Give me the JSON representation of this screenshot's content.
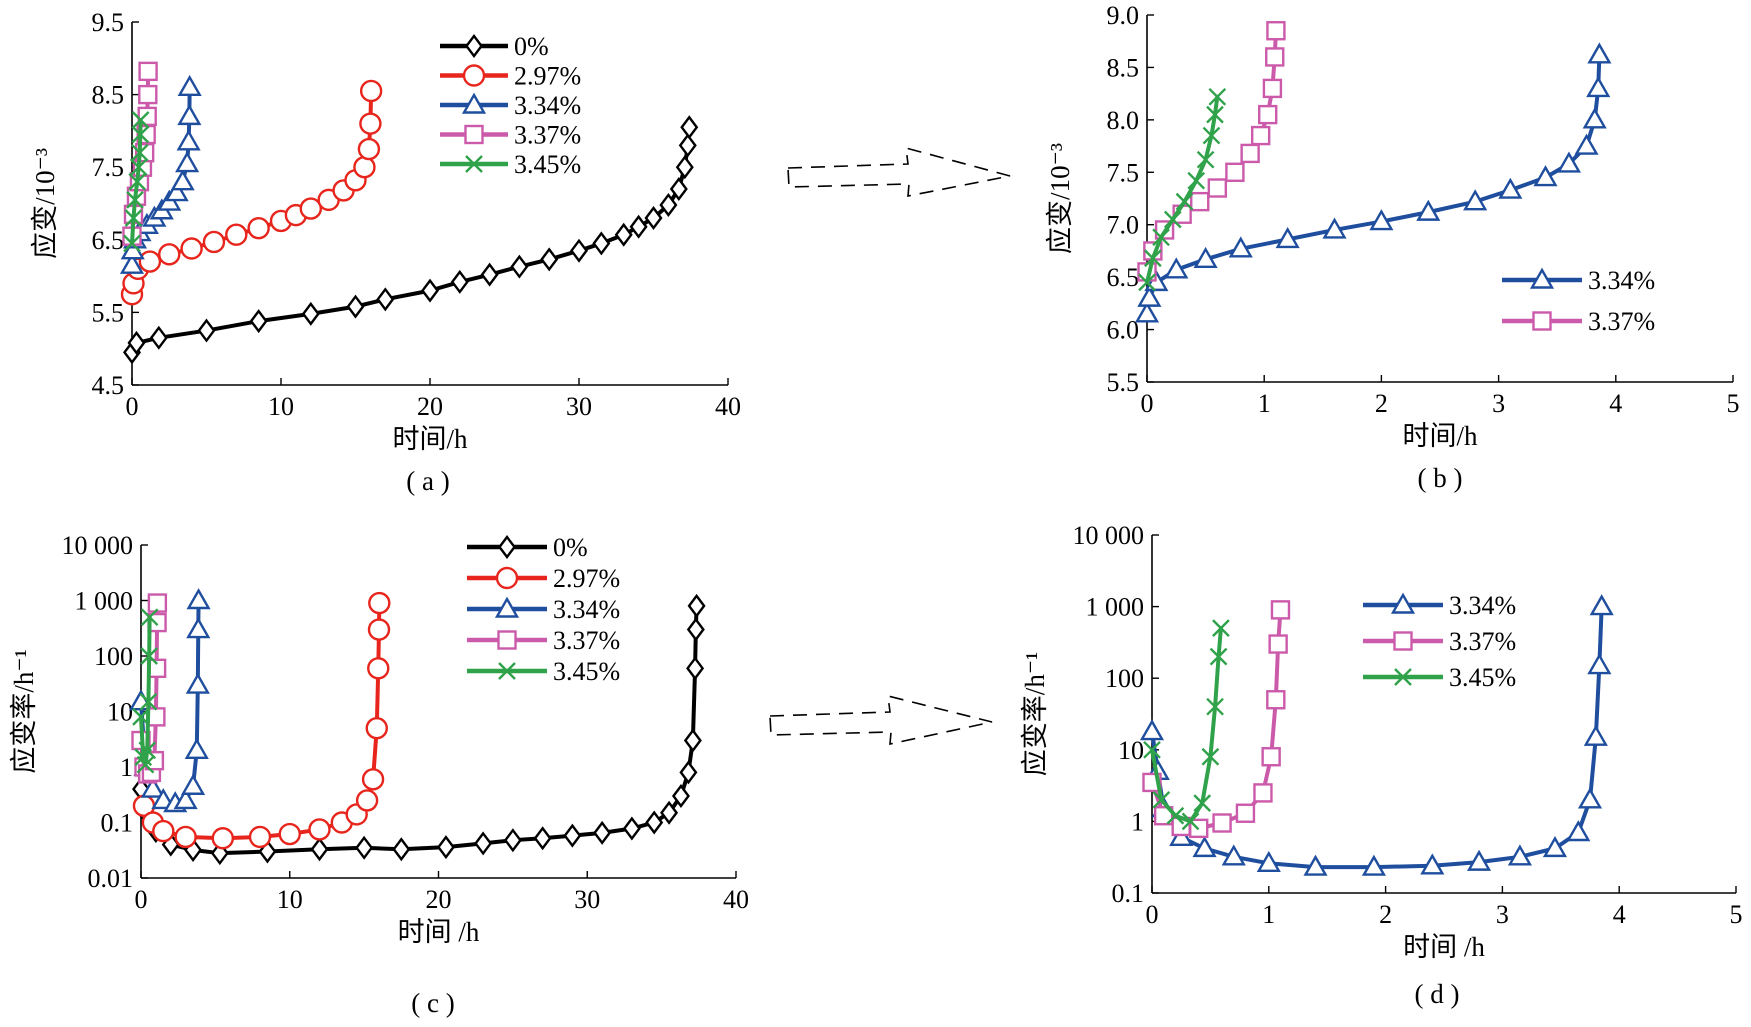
{
  "arrows": [
    {
      "name": "arrow-ab"
    },
    {
      "name": "arrow-cd"
    }
  ],
  "chart_data": [
    {
      "id": "a",
      "type": "line",
      "panel_label": "( a )",
      "xlabel": "时间/h",
      "ylabel": "应变/10⁻³",
      "xlim": [
        0,
        40
      ],
      "ylim": [
        4.5,
        9.5
      ],
      "yscale": "linear",
      "xticks": [
        {
          "v": 0,
          "label": "0"
        },
        {
          "v": 10,
          "label": "10"
        },
        {
          "v": 20,
          "label": "20"
        },
        {
          "v": 30,
          "label": "30"
        },
        {
          "v": 40,
          "label": "40"
        }
      ],
      "yticks": [
        {
          "v": 4.5,
          "label": "4.5"
        },
        {
          "v": 5.5,
          "label": "5.5"
        },
        {
          "v": 6.5,
          "label": "6.5"
        },
        {
          "v": 7.5,
          "label": "7.5"
        },
        {
          "v": 8.5,
          "label": "8.5"
        },
        {
          "v": 9.5,
          "label": "9.5"
        }
      ],
      "legend": {
        "position": "top-center"
      },
      "series": [
        {
          "name": "0%",
          "color": "#000000",
          "marker": "diamond",
          "x": [
            0,
            0.3,
            1.8,
            5,
            8.5,
            12,
            15,
            17,
            20,
            22,
            24,
            26,
            28,
            30,
            31.5,
            33,
            34,
            35,
            36,
            36.7,
            37.1,
            37.3,
            37.4
          ],
          "y": [
            4.95,
            5.08,
            5.15,
            5.25,
            5.38,
            5.48,
            5.58,
            5.68,
            5.8,
            5.92,
            6.02,
            6.13,
            6.23,
            6.35,
            6.45,
            6.57,
            6.68,
            6.8,
            6.98,
            7.2,
            7.5,
            7.8,
            8.05
          ]
        },
        {
          "name": "2.97%",
          "color": "#e8251c",
          "marker": "circle",
          "x": [
            0,
            0.1,
            0.4,
            1.2,
            2.5,
            4,
            5.5,
            7,
            8.5,
            10,
            11,
            12,
            13.2,
            14.2,
            15,
            15.6,
            15.9,
            16,
            16.05
          ],
          "y": [
            5.75,
            5.9,
            6.1,
            6.2,
            6.3,
            6.38,
            6.47,
            6.57,
            6.66,
            6.76,
            6.84,
            6.93,
            7.05,
            7.18,
            7.32,
            7.5,
            7.75,
            8.1,
            8.55
          ]
        },
        {
          "name": "3.34%",
          "color": "#1f4e9e",
          "marker": "triangle",
          "x": [
            0,
            0.05,
            0.2,
            0.5,
            1,
            1.5,
            2,
            2.5,
            3,
            3.4,
            3.7,
            3.8,
            3.85,
            3.87
          ],
          "y": [
            6.15,
            6.35,
            6.5,
            6.6,
            6.7,
            6.8,
            6.9,
            7.02,
            7.15,
            7.3,
            7.55,
            7.85,
            8.2,
            8.6
          ]
        },
        {
          "name": "3.37%",
          "color": "#cc5aab",
          "marker": "square",
          "x": [
            0,
            0.1,
            0.3,
            0.5,
            0.7,
            0.85,
            0.95,
            1.02,
            1.06,
            1.08
          ],
          "y": [
            6.55,
            6.85,
            7.1,
            7.3,
            7.5,
            7.7,
            7.95,
            8.2,
            8.5,
            8.82
          ]
        },
        {
          "name": "3.45%",
          "color": "#2fa24a",
          "marker": "x",
          "x": [
            0,
            0.1,
            0.2,
            0.35,
            0.45,
            0.52,
            0.56,
            0.58
          ],
          "y": [
            6.45,
            6.8,
            7.05,
            7.3,
            7.5,
            7.7,
            7.95,
            8.15
          ]
        }
      ]
    },
    {
      "id": "b",
      "type": "line",
      "panel_label": "( b )",
      "xlabel": "时间/h",
      "ylabel": "应变/10⁻³",
      "xlim": [
        0,
        5
      ],
      "ylim": [
        5.5,
        9.0
      ],
      "yscale": "linear",
      "xticks": [
        {
          "v": 0,
          "label": "0"
        },
        {
          "v": 1,
          "label": "1"
        },
        {
          "v": 2,
          "label": "2"
        },
        {
          "v": 3,
          "label": "3"
        },
        {
          "v": 4,
          "label": "4"
        },
        {
          "v": 5,
          "label": "5"
        }
      ],
      "yticks": [
        {
          "v": 5.5,
          "label": "5.5"
        },
        {
          "v": 6.0,
          "label": "6.0"
        },
        {
          "v": 6.5,
          "label": "6.5"
        },
        {
          "v": 7.0,
          "label": "7.0"
        },
        {
          "v": 7.5,
          "label": "7.5"
        },
        {
          "v": 8.0,
          "label": "8.0"
        },
        {
          "v": 8.5,
          "label": "8.5"
        },
        {
          "v": 9.0,
          "label": "9.0"
        }
      ],
      "legend": {
        "position": "bottom-right"
      },
      "series": [
        {
          "name": "3.34%",
          "color": "#1f4e9e",
          "marker": "triangle",
          "in_legend": true,
          "x": [
            0,
            0.02,
            0.08,
            0.25,
            0.5,
            0.8,
            1.2,
            1.6,
            2,
            2.4,
            2.8,
            3.1,
            3.4,
            3.6,
            3.75,
            3.82,
            3.85,
            3.86
          ],
          "y": [
            6.15,
            6.3,
            6.45,
            6.57,
            6.67,
            6.77,
            6.86,
            6.95,
            7.03,
            7.12,
            7.22,
            7.33,
            7.45,
            7.58,
            7.75,
            8.0,
            8.3,
            8.62
          ]
        },
        {
          "name": "3.37%",
          "color": "#cc5aab",
          "marker": "square",
          "in_legend": true,
          "x": [
            0,
            0.05,
            0.15,
            0.3,
            0.45,
            0.6,
            0.75,
            0.88,
            0.97,
            1.03,
            1.07,
            1.09,
            1.1
          ],
          "y": [
            6.55,
            6.75,
            6.95,
            7.1,
            7.22,
            7.35,
            7.5,
            7.68,
            7.85,
            8.05,
            8.3,
            8.6,
            8.85
          ]
        },
        {
          "name": "3.45%",
          "color": "#2fa24a",
          "marker": "x",
          "in_legend": false,
          "x": [
            0,
            0.05,
            0.12,
            0.22,
            0.32,
            0.42,
            0.5,
            0.55,
            0.58,
            0.6
          ],
          "y": [
            6.45,
            6.68,
            6.88,
            7.05,
            7.22,
            7.42,
            7.62,
            7.85,
            8.05,
            8.22
          ]
        }
      ]
    },
    {
      "id": "c",
      "type": "line",
      "panel_label": "( c )",
      "xlabel": "时间 /h",
      "ylabel": "应变率/h⁻¹",
      "xlim": [
        0,
        40
      ],
      "ylim": [
        0.01,
        10000
      ],
      "yscale": "log",
      "xticks": [
        {
          "v": 0,
          "label": "0"
        },
        {
          "v": 10,
          "label": "10"
        },
        {
          "v": 20,
          "label": "20"
        },
        {
          "v": 30,
          "label": "30"
        },
        {
          "v": 40,
          "label": "40"
        }
      ],
      "yticks": [
        {
          "v": 0.01,
          "label": "0.01"
        },
        {
          "v": 0.1,
          "label": "0.1"
        },
        {
          "v": 1,
          "label": "1"
        },
        {
          "v": 10,
          "label": "10"
        },
        {
          "v": 100,
          "label": "100"
        },
        {
          "v": 1000,
          "label": "1 000"
        },
        {
          "v": 10000,
          "label": "10 000"
        }
      ],
      "legend": {
        "position": "top-center"
      },
      "series": [
        {
          "name": "0%",
          "color": "#000000",
          "marker": "diamond",
          "x": [
            0,
            0.5,
            1,
            2,
            3.5,
            5.3,
            8.5,
            12,
            15,
            17.5,
            20.5,
            23,
            25,
            27,
            29,
            31,
            33,
            34.5,
            35.5,
            36.3,
            36.8,
            37.1,
            37.25,
            37.3,
            37.35
          ],
          "y": [
            0.4,
            0.13,
            0.07,
            0.04,
            0.032,
            0.028,
            0.03,
            0.033,
            0.035,
            0.033,
            0.036,
            0.042,
            0.048,
            0.052,
            0.058,
            0.065,
            0.078,
            0.1,
            0.15,
            0.3,
            0.8,
            3,
            60,
            300,
            800
          ]
        },
        {
          "name": "2.97%",
          "color": "#e8251c",
          "marker": "circle",
          "x": [
            0.2,
            0.8,
            1.5,
            3,
            5.5,
            8,
            10,
            12,
            13.5,
            14.5,
            15.2,
            15.6,
            15.85,
            15.95,
            16,
            16.02
          ],
          "y": [
            0.2,
            0.1,
            0.07,
            0.055,
            0.052,
            0.055,
            0.062,
            0.075,
            0.1,
            0.14,
            0.25,
            0.6,
            5,
            60,
            300,
            900
          ]
        },
        {
          "name": "3.34%",
          "color": "#1f4e9e",
          "marker": "triangle",
          "x": [
            0,
            0.3,
            0.8,
            1.5,
            2.3,
            3,
            3.5,
            3.75,
            3.82,
            3.85,
            3.87
          ],
          "y": [
            15,
            1,
            0.4,
            0.25,
            0.22,
            0.25,
            0.45,
            2,
            30,
            300,
            1000
          ]
        },
        {
          "name": "3.37%",
          "color": "#cc5aab",
          "marker": "square",
          "x": [
            0,
            0.2,
            0.45,
            0.7,
            0.9,
            1.0,
            1.05,
            1.08,
            1.1
          ],
          "y": [
            3,
            1,
            0.75,
            0.8,
            1.3,
            8,
            60,
            400,
            900
          ]
        },
        {
          "name": "3.45%",
          "color": "#2fa24a",
          "marker": "x",
          "x": [
            0,
            0.15,
            0.3,
            0.42,
            0.5,
            0.55,
            0.58
          ],
          "y": [
            8,
            1.5,
            1.1,
            2,
            15,
            100,
            500
          ]
        }
      ]
    },
    {
      "id": "d",
      "type": "line",
      "panel_label": "( d )",
      "xlabel": "时间 /h",
      "ylabel": "应变率/h⁻¹",
      "xlim": [
        0,
        5
      ],
      "ylim": [
        0.1,
        10000
      ],
      "yscale": "log",
      "xticks": [
        {
          "v": 0,
          "label": "0"
        },
        {
          "v": 1,
          "label": "1"
        },
        {
          "v": 2,
          "label": "2"
        },
        {
          "v": 3,
          "label": "3"
        },
        {
          "v": 4,
          "label": "4"
        },
        {
          "v": 5,
          "label": "5"
        }
      ],
      "yticks": [
        {
          "v": 0.1,
          "label": "0.1"
        },
        {
          "v": 1,
          "label": "1"
        },
        {
          "v": 10,
          "label": "10"
        },
        {
          "v": 100,
          "label": "100"
        },
        {
          "v": 1000,
          "label": "1 000"
        },
        {
          "v": 10000,
          "label": "10 000"
        }
      ],
      "legend": {
        "position": "top-center"
      },
      "series": [
        {
          "name": "3.34%",
          "color": "#1f4e9e",
          "marker": "triangle",
          "x": [
            0,
            0.05,
            0.1,
            0.25,
            0.45,
            0.7,
            1,
            1.4,
            1.9,
            2.4,
            2.8,
            3.15,
            3.45,
            3.65,
            3.75,
            3.8,
            3.83,
            3.85
          ],
          "y": [
            18,
            5,
            1.5,
            0.6,
            0.42,
            0.32,
            0.26,
            0.23,
            0.23,
            0.24,
            0.27,
            0.32,
            0.42,
            0.7,
            2,
            15,
            150,
            1000
          ]
        },
        {
          "name": "3.37%",
          "color": "#cc5aab",
          "marker": "square",
          "x": [
            0,
            0.1,
            0.25,
            0.4,
            0.6,
            0.8,
            0.95,
            1.02,
            1.06,
            1.08,
            1.1
          ],
          "y": [
            3.5,
            1.2,
            0.85,
            0.8,
            0.95,
            1.3,
            2.5,
            8,
            50,
            300,
            900
          ]
        },
        {
          "name": "3.45%",
          "color": "#2fa24a",
          "marker": "x",
          "x": [
            0,
            0.08,
            0.2,
            0.33,
            0.43,
            0.5,
            0.54,
            0.57,
            0.59
          ],
          "y": [
            10,
            2,
            1.2,
            1.0,
            1.8,
            8,
            40,
            200,
            500
          ]
        }
      ]
    }
  ]
}
